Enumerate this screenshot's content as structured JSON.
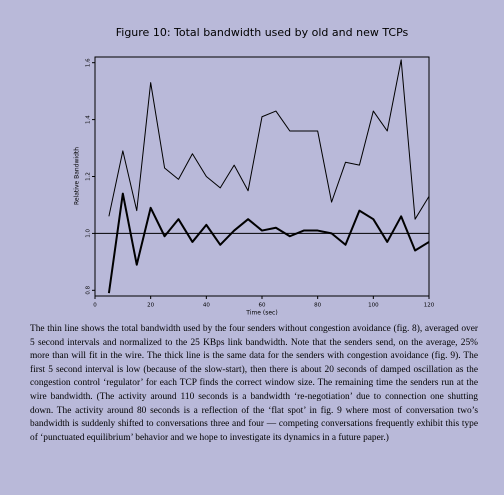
{
  "chart_data": {
    "type": "line",
    "title": "Figure 10: Total bandwidth used by old and new TCPs",
    "x_label": "Time (sec)",
    "y_label": "Relative Bandwidth",
    "x": [
      5,
      10,
      15,
      20,
      25,
      30,
      35,
      40,
      45,
      50,
      55,
      60,
      65,
      70,
      75,
      80,
      85,
      90,
      95,
      100,
      105,
      110,
      115,
      120
    ],
    "series": [
      {
        "color": "#000000",
        "width": 1,
        "values": [
          1.06,
          1.29,
          1.08,
          1.53,
          1.23,
          1.19,
          1.28,
          1.2,
          1.16,
          1.24,
          1.15,
          1.41,
          1.43,
          1.36,
          1.36,
          1.36,
          1.11,
          1.25,
          1.24,
          1.43,
          1.36,
          1.61,
          1.05,
          1.13
        ]
      },
      {
        "color": "#000000",
        "width": 2,
        "values": [
          0.79,
          1.14,
          0.89,
          1.09,
          0.99,
          1.05,
          0.97,
          1.03,
          0.96,
          1.01,
          1.05,
          1.01,
          1.02,
          0.99,
          1.01,
          1.01,
          1.0,
          0.96,
          1.08,
          1.05,
          0.97,
          1.06,
          0.94,
          0.97
        ]
      }
    ],
    "reference_line": 1.0,
    "xlim": [
      0,
      120
    ],
    "xticks": [
      0,
      20,
      40,
      60,
      80,
      100,
      120
    ],
    "ylim": [
      0.78,
      1.62
    ],
    "yticks": [
      {
        "value": 0.8,
        "label": "0.8"
      },
      {
        "value": 1.0,
        "label": "1.0"
      },
      {
        "value": 1.2,
        "label": "1.2"
      },
      {
        "value": 1.4,
        "label": "1.4"
      },
      {
        "value": 1.6,
        "label": "1.6"
      }
    ]
  },
  "caption": "The thin line shows the total bandwidth used by the four senders without congestion avoidance (fig. 8), averaged over 5 second intervals and normalized to the 25 KBps link bandwidth. Note that the senders send, on the average, 25% more than will fit in the wire. The thick line is the same data for the senders with congestion avoidance (fig. 9). The first 5 second interval is low (because of the slow-start), then there is about 20 seconds of damped oscillation as the congestion control ‘regulator’ for each TCP finds the correct window size. The remaining time the senders run at the wire bandwidth. (The activity around 110 seconds is a bandwidth ‘re-negotiation’ due to connection one shutting down. The activity around 80 seconds is a reflection of the ‘flat spot’ in fig. 9 where most of conversation two’s bandwidth is suddenly shifted to conversations three and four — competing conversations frequently exhibit this type of ‘punctuated equilibrium’ behavior and we hope to investigate its dynamics in a future paper.)"
}
